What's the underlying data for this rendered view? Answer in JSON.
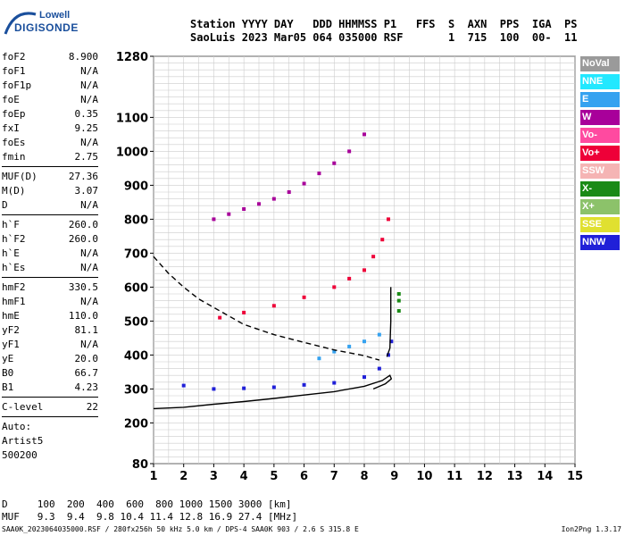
{
  "logo": {
    "brand": "Lowell",
    "product": "DIGISONDE"
  },
  "header": {
    "line1": "Station YYYY DAY   DDD HHMMSS P1   FFS  S  AXN  PPS  IGA  PS",
    "line2": "SaoLuis 2023 Mar05 064 035000 RSF       1  715  100  00-  11"
  },
  "params_group1": [
    {
      "key": "foF2",
      "val": "8.900"
    },
    {
      "key": "foF1",
      "val": "N/A"
    },
    {
      "key": "foF1p",
      "val": "N/A"
    },
    {
      "key": "foE",
      "val": "N/A"
    },
    {
      "key": "foEp",
      "val": "0.35"
    },
    {
      "key": "fxI",
      "val": "9.25"
    },
    {
      "key": "foEs",
      "val": "N/A"
    },
    {
      "key": "fmin",
      "val": "2.75"
    }
  ],
  "params_group2": [
    {
      "key": "MUF(D)",
      "val": "27.36"
    },
    {
      "key": "M(D)",
      "val": "3.07"
    },
    {
      "key": "D",
      "val": "N/A"
    }
  ],
  "params_group3": [
    {
      "key": "h`F",
      "val": "260.0"
    },
    {
      "key": "h`F2",
      "val": "260.0"
    },
    {
      "key": "h`E",
      "val": "N/A"
    },
    {
      "key": "h`Es",
      "val": "N/A"
    }
  ],
  "params_group4": [
    {
      "key": "hmF2",
      "val": "330.5"
    },
    {
      "key": "hmF1",
      "val": "N/A"
    },
    {
      "key": "hmE",
      "val": "110.0"
    },
    {
      "key": "yF2",
      "val": "81.1"
    },
    {
      "key": "yF1",
      "val": "N/A"
    },
    {
      "key": "yE",
      "val": "20.0"
    },
    {
      "key": "B0",
      "val": "66.7"
    },
    {
      "key": "B1",
      "val": "4.23"
    }
  ],
  "params_group5": [
    {
      "key": "C-level",
      "val": "22"
    }
  ],
  "auto": {
    "label": "Auto:",
    "artist": "Artist5",
    "version": "500200"
  },
  "legend": [
    {
      "label": "NoVal",
      "color": "#9a9a9a"
    },
    {
      "label": "NNE",
      "color": "#22e8ff"
    },
    {
      "label": "E",
      "color": "#35a2f0"
    },
    {
      "label": "W",
      "color": "#a8009a"
    },
    {
      "label": "Vo-",
      "color": "#ff4aa0"
    },
    {
      "label": "Vo+",
      "color": "#ee0038"
    },
    {
      "label": "SSW",
      "color": "#f5b4b4"
    },
    {
      "label": "X-",
      "color": "#1a8a16"
    },
    {
      "label": "X+",
      "color": "#8cc26a"
    },
    {
      "label": "SSE",
      "color": "#e0e030"
    },
    {
      "label": "NNW",
      "color": "#2020d8"
    }
  ],
  "dmuf": {
    "d_line": "D     100  200  400  600  800 1000 1500 3000 [km]",
    "muf_line": "MUF   9.3  9.4  9.8 10.4 11.4 12.8 16.9 27.4 [MHz]"
  },
  "footer": "SAA0K_2023064035000.RSF / 280fx256h 50 kHz 5.0 km / DPS-4 SAA0K 903 / 2.6 S 315.8 E",
  "version": "Ion2Png 1.3.17",
  "chart_data": {
    "type": "scatter",
    "x_ticks": [
      "1",
      "2",
      "3",
      "4",
      "5",
      "6",
      "7",
      "8",
      "9",
      "10",
      "11",
      "12",
      "13",
      "14",
      "15"
    ],
    "y_ticks": [
      "80",
      "200",
      "300",
      "400",
      "500",
      "600",
      "700",
      "800",
      "900",
      "1000",
      "1100",
      "1280"
    ],
    "xlim": [
      1,
      15
    ],
    "ylim": [
      80,
      1280
    ],
    "grid": true,
    "series": [
      {
        "color": "#2020d8",
        "points": [
          [
            2.0,
            310
          ],
          [
            3.0,
            300
          ],
          [
            4.0,
            302
          ],
          [
            5.0,
            305
          ],
          [
            6.0,
            312
          ],
          [
            7.0,
            318
          ],
          [
            8.0,
            335
          ],
          [
            8.5,
            360
          ],
          [
            8.8,
            400
          ],
          [
            8.9,
            440
          ]
        ]
      },
      {
        "color": "#ee0038",
        "points": [
          [
            3.2,
            510
          ],
          [
            4.0,
            525
          ],
          [
            5.0,
            545
          ],
          [
            6.0,
            570
          ],
          [
            7.0,
            600
          ],
          [
            7.5,
            625
          ],
          [
            8.0,
            650
          ],
          [
            8.3,
            690
          ],
          [
            8.6,
            740
          ],
          [
            8.8,
            800
          ]
        ]
      },
      {
        "color": "#a8009a",
        "points": [
          [
            3.0,
            800
          ],
          [
            3.5,
            815
          ],
          [
            4.0,
            830
          ],
          [
            4.5,
            845
          ],
          [
            5.0,
            860
          ],
          [
            5.5,
            880
          ],
          [
            6.0,
            905
          ],
          [
            6.5,
            935
          ],
          [
            7.0,
            965
          ],
          [
            7.5,
            1000
          ],
          [
            8.0,
            1050
          ]
        ]
      },
      {
        "color": "#35a2f0",
        "points": [
          [
            6.5,
            390
          ],
          [
            7.0,
            410
          ],
          [
            7.5,
            425
          ],
          [
            8.0,
            440
          ],
          [
            8.5,
            460
          ]
        ]
      },
      {
        "color": "#1a8a16",
        "points": [
          [
            9.15,
            530
          ],
          [
            9.15,
            560
          ],
          [
            9.15,
            580
          ]
        ]
      }
    ],
    "curves": [
      {
        "name": "",
        "style": "solid",
        "color": "#000",
        "points": [
          [
            1.0,
            242
          ],
          [
            2.0,
            246
          ],
          [
            3.0,
            255
          ],
          [
            4.0,
            263
          ],
          [
            5.0,
            272
          ],
          [
            6.0,
            282
          ],
          [
            7.0,
            292
          ],
          [
            8.0,
            308
          ],
          [
            8.6,
            325
          ],
          [
            8.85,
            340
          ],
          [
            8.9,
            330
          ],
          [
            8.7,
            315
          ],
          [
            8.3,
            300
          ]
        ]
      },
      {
        "name": "",
        "style": "dashed",
        "color": "#000",
        "points": [
          [
            1.0,
            690
          ],
          [
            1.5,
            640
          ],
          [
            2.0,
            600
          ],
          [
            2.5,
            565
          ],
          [
            3.0,
            540
          ],
          [
            3.5,
            515
          ],
          [
            4.0,
            490
          ],
          [
            5.0,
            460
          ],
          [
            6.0,
            437
          ],
          [
            7.0,
            415
          ],
          [
            8.0,
            398
          ],
          [
            8.5,
            385
          ]
        ]
      },
      {
        "name": "",
        "style": "solid",
        "color": "#000",
        "points": [
          [
            8.88,
            600
          ],
          [
            8.88,
            500
          ],
          [
            8.85,
            420
          ],
          [
            8.75,
            395
          ]
        ]
      }
    ]
  }
}
